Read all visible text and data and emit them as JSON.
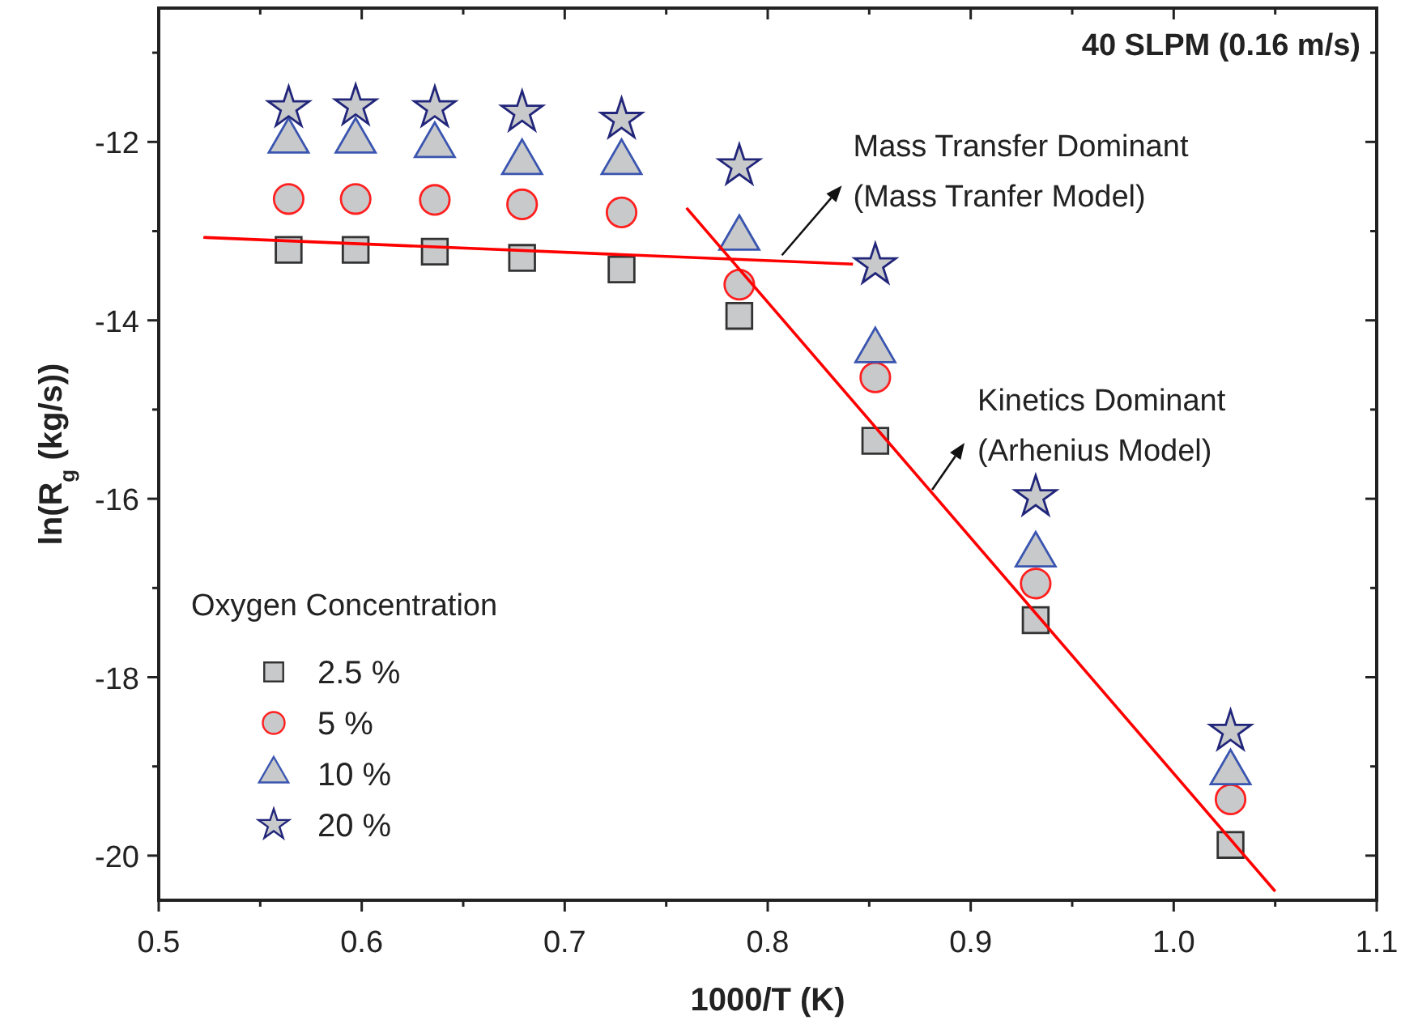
{
  "chart_data": {
    "type": "scatter",
    "title": "40 SLPM (0.16 m/s)",
    "xlabel": "1000/T (K)",
    "ylabel": "ln(R$_{g}$ (kg/s))",
    "legend_title": "Oxygen Concentration",
    "legend": "bottom left",
    "annotations": [
      {
        "text": "Mass Transfer Dominant\n(Mass Tranfer Model)",
        "x": 0.807,
        "y": -13.27
      },
      {
        "text": "Kinetics Dominant\n(Arhenius Model)",
        "x": 0.881,
        "y": -15.9
      }
    ],
    "x": [
      0.564,
      0.597,
      0.636,
      0.679,
      0.728,
      0.786,
      0.853,
      0.932,
      1.028
    ],
    "xlim": [
      0.5,
      1.1
    ],
    "xticks": [
      0.5,
      {
        "value": 0.55,
        "label": null
      },
      0.6,
      {
        "value": 0.65,
        "label": null
      },
      0.7,
      {
        "value": 0.75,
        "label": null
      },
      0.8,
      {
        "value": 0.85,
        "label": null
      },
      0.9,
      {
        "value": 0.95,
        "label": null
      },
      {
        "value": 1,
        "label": "1.0"
      },
      {
        "value": 1.05,
        "label": null
      },
      1.1
    ],
    "ylim": [
      -20.5,
      -10.5
    ],
    "yticks": [
      -20,
      {
        "value": -19,
        "label": null
      },
      -18,
      {
        "value": -17,
        "label": null
      },
      -16,
      {
        "value": -15,
        "label": null
      },
      -14,
      {
        "value": -13,
        "label": null
      },
      -12,
      {
        "value": -11,
        "label": null
      }
    ],
    "series": [
      {
        "name": "2.5 %",
        "color": "#333333",
        "marker": "square",
        "values": [
          -13.21,
          -13.21,
          -13.23,
          -13.3,
          -13.43,
          -13.95,
          -15.35,
          -17.36,
          -19.88
        ]
      },
      {
        "name": "5 %",
        "color": "#ff2020",
        "marker": "circle",
        "values": [
          -12.64,
          -12.64,
          -12.65,
          -12.7,
          -12.79,
          -13.6,
          -14.64,
          -16.95,
          -19.37
        ]
      },
      {
        "name": "10 %",
        "color": "#3a55b0",
        "marker": "triangle",
        "values": [
          -11.99,
          -11.99,
          -12.04,
          -12.23,
          -12.23,
          -13.08,
          -14.34,
          -16.63,
          -19.07
        ]
      },
      {
        "name": "20 %",
        "color": "#22267a",
        "marker": "star",
        "values": [
          -11.62,
          -11.6,
          -11.62,
          -11.67,
          -11.75,
          -12.27,
          -13.38,
          -15.98,
          -18.61
        ]
      },
      {
        "type": "line",
        "color": "#ff0000",
        "x": [
          0.522,
          0.842
        ],
        "values": [
          -13.07,
          -13.37
        ]
      },
      {
        "type": "line",
        "color": "#ff0000",
        "x": [
          0.76,
          1.05
        ],
        "values": [
          -12.74,
          -20.4
        ]
      }
    ]
  }
}
